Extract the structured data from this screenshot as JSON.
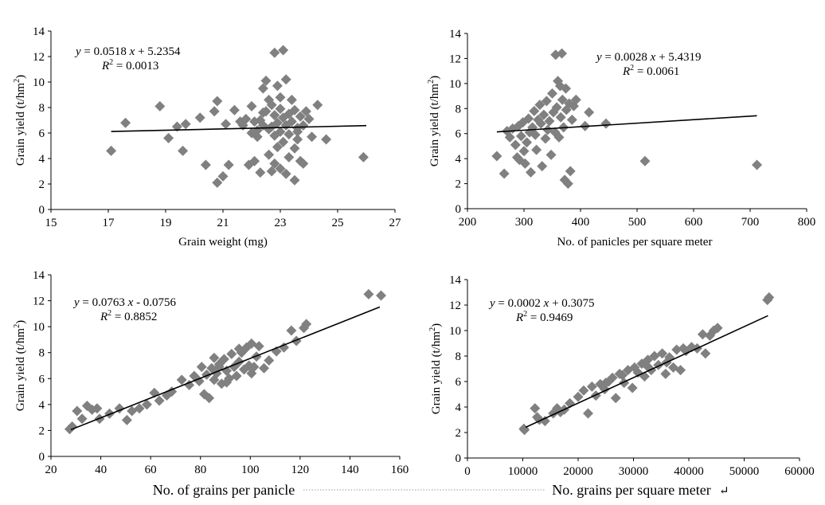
{
  "colors": {
    "marker": "#808080",
    "trend": "#000000"
  },
  "return_mark": "↵",
  "chart_data": [
    {
      "type": "scatter",
      "xlabel": "Grain weight (mg)",
      "ylabel": "Grain yield (t/hm²)",
      "xlim": [
        15,
        27
      ],
      "ylim": [
        0,
        14
      ],
      "xticks": [
        "15",
        "17",
        "19",
        "21",
        "23",
        "25",
        "27"
      ],
      "yticks": [
        "0",
        "2",
        "4",
        "6",
        "8",
        "10",
        "12",
        "14"
      ],
      "equation": {
        "pre": "y",
        "mid": " = 0.0518 ",
        "x": "x",
        "post": " + 5.2354"
      },
      "r2": {
        "label": "R",
        "sup": "2",
        "value": " = 0.0013"
      },
      "trendline": {
        "slope": 0.0518,
        "intercept": 5.2354,
        "x_range": [
          17.1,
          26.0
        ]
      },
      "points": [
        [
          17.1,
          4.6
        ],
        [
          17.6,
          6.8
        ],
        [
          18.8,
          8.1
        ],
        [
          19.1,
          5.6
        ],
        [
          19.4,
          6.5
        ],
        [
          19.6,
          4.6
        ],
        [
          19.7,
          6.7
        ],
        [
          20.2,
          7.2
        ],
        [
          20.4,
          3.5
        ],
        [
          20.7,
          7.7
        ],
        [
          20.8,
          8.5
        ],
        [
          20.8,
          2.1
        ],
        [
          21.0,
          2.6
        ],
        [
          21.1,
          6.7
        ],
        [
          21.2,
          3.5
        ],
        [
          21.4,
          7.8
        ],
        [
          21.6,
          6.9
        ],
        [
          21.7,
          6.6
        ],
        [
          21.8,
          7.1
        ],
        [
          21.9,
          3.5
        ],
        [
          22.0,
          8.1
        ],
        [
          22.0,
          6.0
        ],
        [
          22.1,
          3.8
        ],
        [
          22.1,
          6.9
        ],
        [
          22.2,
          5.7
        ],
        [
          22.3,
          7.0
        ],
        [
          22.3,
          2.9
        ],
        [
          22.4,
          6.6
        ],
        [
          22.4,
          9.5
        ],
        [
          22.5,
          10.1
        ],
        [
          22.5,
          7.7
        ],
        [
          22.6,
          8.6
        ],
        [
          22.6,
          4.3
        ],
        [
          22.6,
          6.3
        ],
        [
          22.7,
          8.2
        ],
        [
          22.7,
          3.0
        ],
        [
          22.7,
          6.5
        ],
        [
          22.8,
          12.3
        ],
        [
          22.8,
          3.6
        ],
        [
          22.8,
          7.4
        ],
        [
          22.8,
          5.8
        ],
        [
          22.9,
          6.8
        ],
        [
          22.9,
          9.7
        ],
        [
          22.9,
          4.9
        ],
        [
          23.0,
          7.9
        ],
        [
          23.0,
          6.1
        ],
        [
          23.0,
          3.2
        ],
        [
          23.0,
          8.8
        ],
        [
          23.1,
          12.5
        ],
        [
          23.1,
          5.3
        ],
        [
          23.1,
          7.2
        ],
        [
          23.2,
          2.8
        ],
        [
          23.2,
          6.6
        ],
        [
          23.2,
          10.2
        ],
        [
          23.3,
          4.1
        ],
        [
          23.3,
          7.5
        ],
        [
          23.3,
          5.9
        ],
        [
          23.4,
          8.6
        ],
        [
          23.4,
          6.9
        ],
        [
          23.5,
          4.8
        ],
        [
          23.5,
          7.8
        ],
        [
          23.5,
          2.3
        ],
        [
          23.6,
          5.5
        ],
        [
          23.6,
          6.4
        ],
        [
          23.7,
          3.8
        ],
        [
          23.7,
          7.3
        ],
        [
          23.8,
          6.6
        ],
        [
          23.8,
          3.6
        ],
        [
          23.9,
          7.7
        ],
        [
          24.0,
          7.1
        ],
        [
          24.1,
          5.7
        ],
        [
          24.3,
          8.2
        ],
        [
          24.6,
          5.5
        ],
        [
          25.9,
          4.1
        ],
        [
          22.2,
          6.2
        ],
        [
          22.4,
          7.6
        ],
        [
          23.6,
          6.1
        ]
      ]
    },
    {
      "type": "scatter",
      "xlabel": "No. of panicles per square meter",
      "ylabel": "Grain yield (t/hm²)",
      "xlim": [
        200,
        800
      ],
      "ylim": [
        0,
        14
      ],
      "xticks": [
        "200",
        "300",
        "400",
        "500",
        "600",
        "700",
        "800"
      ],
      "yticks": [
        "0",
        "2",
        "4",
        "6",
        "8",
        "10",
        "12",
        "14"
      ],
      "equation": {
        "pre": "y",
        "mid": " = 0.0028 ",
        "x": "x",
        "post": " + 5.4319"
      },
      "r2": {
        "label": "R",
        "sup": "2",
        "value": " = 0.0061"
      },
      "trendline": {
        "slope": 0.0028,
        "intercept": 5.4319,
        "x_range": [
          252,
          712
        ]
      },
      "points": [
        [
          252,
          4.2
        ],
        [
          265,
          2.8
        ],
        [
          270,
          6.2
        ],
        [
          275,
          5.7
        ],
        [
          280,
          6.4
        ],
        [
          285,
          5.1
        ],
        [
          288,
          4.1
        ],
        [
          290,
          6.6
        ],
        [
          292,
          3.9
        ],
        [
          295,
          5.8
        ],
        [
          298,
          6.9
        ],
        [
          300,
          4.6
        ],
        [
          302,
          3.6
        ],
        [
          305,
          5.3
        ],
        [
          308,
          7.2
        ],
        [
          310,
          6.1
        ],
        [
          312,
          2.9
        ],
        [
          315,
          6.5
        ],
        [
          318,
          7.8
        ],
        [
          320,
          5.9
        ],
        [
          322,
          4.7
        ],
        [
          325,
          7.1
        ],
        [
          328,
          8.3
        ],
        [
          330,
          6.8
        ],
        [
          332,
          3.4
        ],
        [
          335,
          7.5
        ],
        [
          338,
          5.6
        ],
        [
          340,
          8.6
        ],
        [
          342,
          6.3
        ],
        [
          345,
          7.0
        ],
        [
          348,
          4.3
        ],
        [
          350,
          9.2
        ],
        [
          352,
          7.7
        ],
        [
          355,
          6.1
        ],
        [
          356,
          12.3
        ],
        [
          358,
          8.1
        ],
        [
          360,
          10.2
        ],
        [
          362,
          5.7
        ],
        [
          364,
          9.8
        ],
        [
          365,
          7.3
        ],
        [
          367,
          12.4
        ],
        [
          368,
          8.7
        ],
        [
          370,
          6.5
        ],
        [
          372,
          2.3
        ],
        [
          374,
          9.6
        ],
        [
          375,
          7.9
        ],
        [
          378,
          2.0
        ],
        [
          380,
          8.4
        ],
        [
          382,
          3.0
        ],
        [
          385,
          7.1
        ],
        [
          388,
          8.2
        ],
        [
          392,
          8.7
        ],
        [
          408,
          6.6
        ],
        [
          415,
          7.7
        ],
        [
          445,
          6.8
        ],
        [
          514,
          3.8
        ],
        [
          712,
          3.5
        ]
      ]
    },
    {
      "type": "scatter",
      "xlabel": "No. of grains per panicle",
      "ylabel": "Grain yield (t/hm²)",
      "xlim": [
        20,
        160
      ],
      "ylim": [
        0,
        14
      ],
      "xticks": [
        "20",
        "40",
        "60",
        "80",
        "100",
        "120",
        "140",
        "160"
      ],
      "yticks": [
        "0",
        "2",
        "4",
        "6",
        "8",
        "10",
        "12",
        "14"
      ],
      "equation": {
        "pre": "y",
        "mid": " = 0.0763 ",
        "x": "x",
        "post": " - 0.0756"
      },
      "r2": {
        "label": "R",
        "sup": "2",
        "value": " = 0.8852"
      },
      "trendline": {
        "slope": 0.0763,
        "intercept": -0.0756,
        "x_range": [
          28,
          152
        ]
      },
      "points": [
        [
          27.5,
          2.1
        ],
        [
          28.5,
          2.3
        ],
        [
          30.5,
          3.5
        ],
        [
          32.5,
          2.9
        ],
        [
          34.5,
          3.9
        ],
        [
          36.5,
          3.6
        ],
        [
          38.5,
          3.7
        ],
        [
          39.5,
          2.9
        ],
        [
          43.5,
          3.3
        ],
        [
          47.5,
          3.7
        ],
        [
          50.5,
          2.8
        ],
        [
          52.5,
          3.5
        ],
        [
          55.5,
          3.7
        ],
        [
          58.5,
          4.0
        ],
        [
          61.5,
          4.9
        ],
        [
          63.5,
          4.3
        ],
        [
          66.5,
          4.7
        ],
        [
          68.5,
          5.0
        ],
        [
          72.5,
          5.9
        ],
        [
          75.5,
          5.5
        ],
        [
          77.5,
          6.2
        ],
        [
          79.5,
          5.8
        ],
        [
          80.5,
          6.9
        ],
        [
          81.5,
          4.8
        ],
        [
          82.5,
          6.3
        ],
        [
          83.5,
          4.5
        ],
        [
          84.5,
          6.8
        ],
        [
          85.5,
          5.9
        ],
        [
          86.5,
          6.4
        ],
        [
          87.5,
          7.1
        ],
        [
          88.5,
          5.6
        ],
        [
          89.5,
          7.5
        ],
        [
          90.5,
          6.6
        ],
        [
          91.5,
          6.0
        ],
        [
          92.5,
          7.9
        ],
        [
          93.5,
          6.9
        ],
        [
          94.5,
          6.2
        ],
        [
          95.5,
          7.3
        ],
        [
          96.5,
          8.0
        ],
        [
          97.5,
          6.7
        ],
        [
          98.5,
          8.4
        ],
        [
          99.5,
          7.0
        ],
        [
          100.5,
          8.7
        ],
        [
          101.5,
          6.9
        ],
        [
          102.5,
          7.7
        ],
        [
          103.5,
          8.5
        ],
        [
          105.5,
          6.8
        ],
        [
          107.5,
          7.4
        ],
        [
          110.5,
          8.1
        ],
        [
          113.5,
          8.4
        ],
        [
          116.5,
          9.7
        ],
        [
          118.5,
          8.9
        ],
        [
          121.5,
          9.9
        ],
        [
          122.5,
          10.2
        ],
        [
          147.5,
          12.5
        ],
        [
          152.5,
          12.4
        ],
        [
          85.5,
          7.6
        ],
        [
          90.5,
          5.7
        ],
        [
          95.5,
          8.3
        ],
        [
          100.5,
          6.4
        ],
        [
          87.5,
          6.9
        ]
      ]
    },
    {
      "type": "scatter",
      "xlabel": "No. grains per square meter",
      "ylabel": "Grain yield (t/hm²)",
      "xlim": [
        0,
        60000
      ],
      "ylim": [
        0,
        14
      ],
      "xticks": [
        "0",
        "10000",
        "20000",
        "30000",
        "40000",
        "50000",
        "60000"
      ],
      "yticks": [
        "0",
        "2",
        "4",
        "6",
        "8",
        "10",
        "12",
        "14"
      ],
      "equation": {
        "pre": "y",
        "mid": " = 0.0002 ",
        "x": "x",
        "post": " + 0.3075"
      },
      "r2": {
        "label": "R",
        "sup": "2",
        "value": " = 0.9469"
      },
      "trendline": {
        "slope": 0.0002,
        "intercept": 0.3075,
        "x_range": [
          10500,
          54300
        ]
      },
      "points": [
        [
          10200,
          2.3
        ],
        [
          10300,
          2.2
        ],
        [
          12200,
          3.9
        ],
        [
          12600,
          3.2
        ],
        [
          13000,
          3.0
        ],
        [
          14000,
          2.9
        ],
        [
          15500,
          3.5
        ],
        [
          16200,
          3.9
        ],
        [
          16800,
          3.6
        ],
        [
          17500,
          3.8
        ],
        [
          18500,
          4.3
        ],
        [
          20000,
          4.8
        ],
        [
          21000,
          5.3
        ],
        [
          21800,
          3.5
        ],
        [
          22500,
          5.6
        ],
        [
          23200,
          4.9
        ],
        [
          24000,
          5.8
        ],
        [
          24800,
          5.4
        ],
        [
          25500,
          6.0
        ],
        [
          26200,
          6.3
        ],
        [
          26800,
          4.7
        ],
        [
          27500,
          6.6
        ],
        [
          28300,
          5.9
        ],
        [
          29000,
          6.9
        ],
        [
          29800,
          5.5
        ],
        [
          30200,
          7.1
        ],
        [
          30800,
          6.7
        ],
        [
          31500,
          7.4
        ],
        [
          32000,
          6.4
        ],
        [
          32600,
          7.7
        ],
        [
          33200,
          6.9
        ],
        [
          33800,
          8.0
        ],
        [
          34500,
          7.3
        ],
        [
          35200,
          8.2
        ],
        [
          35800,
          6.6
        ],
        [
          36500,
          7.9
        ],
        [
          37200,
          7.1
        ],
        [
          37800,
          8.5
        ],
        [
          38500,
          6.9
        ],
        [
          39000,
          8.6
        ],
        [
          39500,
          8.4
        ],
        [
          40500,
          8.7
        ],
        [
          41500,
          8.6
        ],
        [
          42500,
          9.7
        ],
        [
          43000,
          8.2
        ],
        [
          43800,
          9.6
        ],
        [
          44500,
          10.0
        ],
        [
          45200,
          10.2
        ],
        [
          54200,
          12.4
        ],
        [
          54500,
          12.6
        ],
        [
          28000,
          6.5
        ],
        [
          32500,
          7.2
        ],
        [
          36000,
          7.5
        ],
        [
          25000,
          5.9
        ]
      ]
    }
  ]
}
